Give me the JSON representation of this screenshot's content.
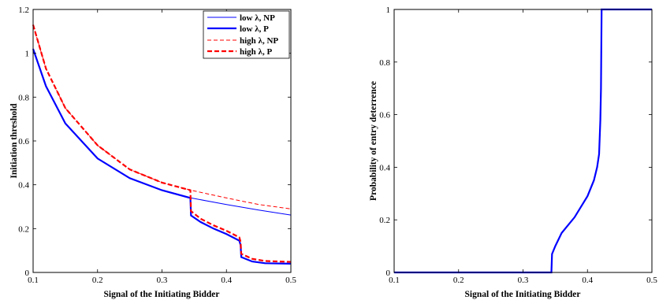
{
  "chart_data": [
    {
      "type": "line",
      "title": "",
      "xlabel": "Signal of the Initiating Bidder",
      "ylabel": "Initiation threshold",
      "xlim": [
        0.1,
        0.5
      ],
      "ylim": [
        0,
        1.2
      ],
      "xticks": [
        "0.1",
        "0.2",
        "0.3",
        "0.4",
        "0.5"
      ],
      "yticks": [
        "0",
        "0.2",
        "0.4",
        "0.6",
        "0.8",
        "1",
        "1.2"
      ],
      "grid": false,
      "legend_position": "top-right",
      "series": [
        {
          "name": "low λ, NP",
          "color": "#0000ff",
          "style": "solid-thin",
          "x": [
            0.1,
            0.12,
            0.15,
            0.2,
            0.25,
            0.3,
            0.345,
            0.4,
            0.45,
            0.5
          ],
          "y": [
            1.02,
            0.85,
            0.68,
            0.52,
            0.43,
            0.375,
            0.34,
            0.31,
            0.285,
            0.262
          ]
        },
        {
          "name": "low λ, P",
          "color": "#0000ff",
          "style": "solid-thick",
          "x": [
            0.1,
            0.12,
            0.15,
            0.2,
            0.25,
            0.3,
            0.344,
            0.345,
            0.36,
            0.38,
            0.4,
            0.42,
            0.422,
            0.423,
            0.44,
            0.46,
            0.5
          ],
          "y": [
            1.02,
            0.85,
            0.68,
            0.52,
            0.43,
            0.375,
            0.34,
            0.26,
            0.23,
            0.2,
            0.175,
            0.145,
            0.125,
            0.07,
            0.05,
            0.042,
            0.04
          ]
        },
        {
          "name": "high λ, NP",
          "color": "#ff0000",
          "style": "dashed-thin",
          "x": [
            0.1,
            0.12,
            0.15,
            0.2,
            0.25,
            0.3,
            0.345,
            0.4,
            0.45,
            0.5
          ],
          "y": [
            1.13,
            0.93,
            0.75,
            0.58,
            0.47,
            0.41,
            0.375,
            0.34,
            0.31,
            0.29
          ]
        },
        {
          "name": "high λ, P",
          "color": "#ff0000",
          "style": "dashed-thick",
          "x": [
            0.1,
            0.12,
            0.15,
            0.2,
            0.25,
            0.3,
            0.344,
            0.345,
            0.36,
            0.38,
            0.4,
            0.42,
            0.422,
            0.423,
            0.44,
            0.46,
            0.5
          ],
          "y": [
            1.13,
            0.93,
            0.75,
            0.58,
            0.47,
            0.41,
            0.375,
            0.28,
            0.245,
            0.215,
            0.19,
            0.16,
            0.14,
            0.085,
            0.062,
            0.052,
            0.048
          ]
        }
      ]
    },
    {
      "type": "line",
      "title": "",
      "xlabel": "Signal of the Initiating Bidder",
      "ylabel": "Probability of entry deterrence",
      "xlim": [
        0.1,
        0.5
      ],
      "ylim": [
        0,
        1
      ],
      "xticks": [
        "0.1",
        "0.2",
        "0.3",
        "0.4",
        "0.5"
      ],
      "yticks": [
        "0",
        "0.2",
        "0.4",
        "0.6",
        "0.8",
        "1"
      ],
      "grid": false,
      "series": [
        {
          "name": "",
          "color": "#0000ff",
          "style": "solid-thick",
          "x": [
            0.1,
            0.3,
            0.344,
            0.345,
            0.35,
            0.36,
            0.38,
            0.4,
            0.41,
            0.415,
            0.418,
            0.42,
            0.421,
            0.422,
            0.45,
            0.5
          ],
          "y": [
            0,
            0,
            0,
            0.07,
            0.1,
            0.15,
            0.21,
            0.29,
            0.35,
            0.4,
            0.45,
            0.58,
            0.7,
            1.0,
            1.0,
            1.0
          ]
        }
      ]
    }
  ]
}
